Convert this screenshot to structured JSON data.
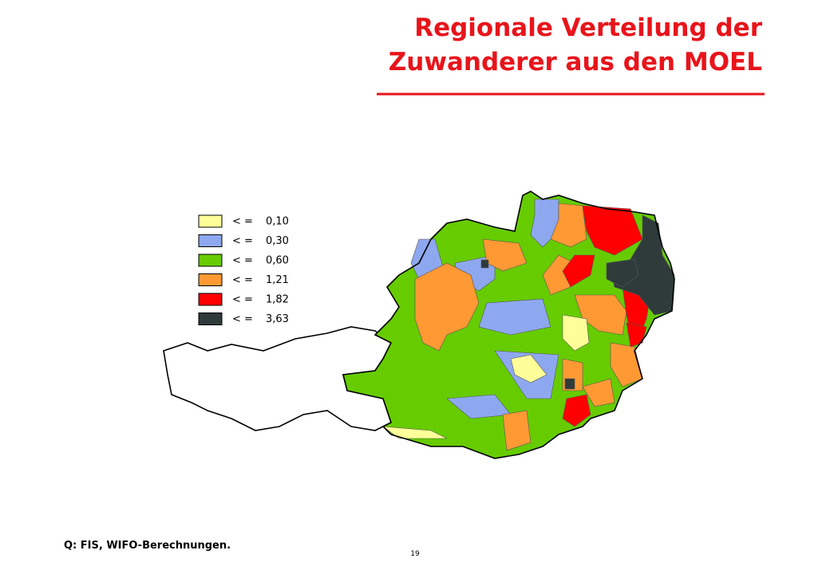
{
  "header": {
    "title_lines": [
      "Regionale Verteilung der",
      "Zuwanderer aus den MOEL"
    ]
  },
  "legend": [
    {
      "operator": "< =",
      "label": "0,10",
      "color": "#ffff99"
    },
    {
      "operator": "< =",
      "label": "0,30",
      "color": "#8ea8f0"
    },
    {
      "operator": "< =",
      "label": "0,60",
      "color": "#66cc00"
    },
    {
      "operator": "< =",
      "label": "1,21",
      "color": "#ff9933"
    },
    {
      "operator": "< =",
      "label": "1,82",
      "color": "#ff0000"
    },
    {
      "operator": "< =",
      "label": "3,63",
      "color": "#2f3b3b"
    }
  ],
  "footer": {
    "source": "Q: FIS, WIFO-Berechnungen.",
    "page_number": "19"
  }
}
